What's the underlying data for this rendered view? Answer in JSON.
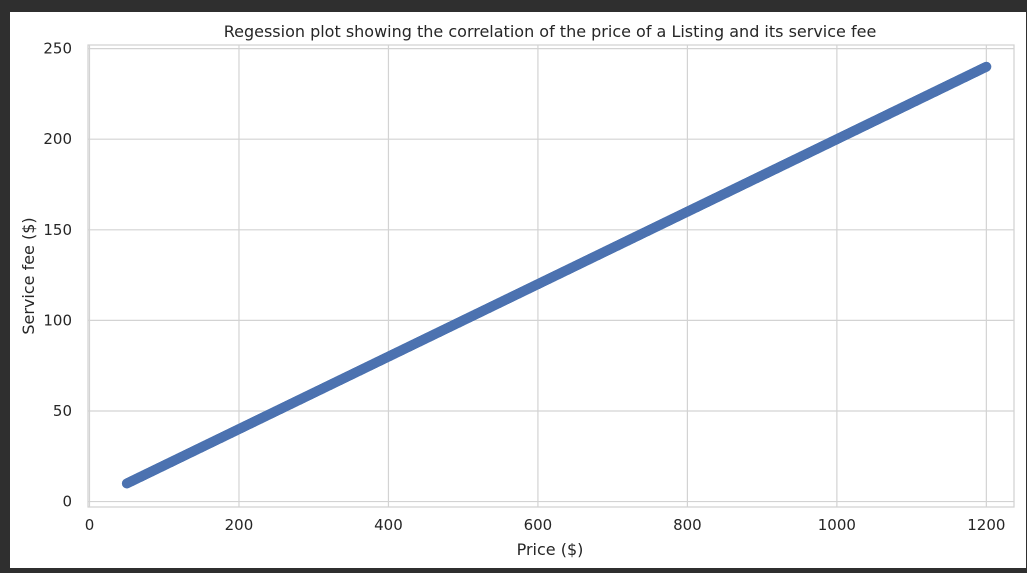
{
  "chart_data": {
    "type": "scatter",
    "title": "Regession plot showing the correlation of the price of a Listing and its service fee",
    "xlabel": "Price ($)",
    "ylabel": "Service fee ($)",
    "xlim": [
      -2,
      1237
    ],
    "ylim": [
      -3,
      252
    ],
    "xticks": [
      0,
      200,
      400,
      600,
      800,
      1000,
      1200
    ],
    "yticks": [
      0,
      50,
      100,
      150,
      200,
      250
    ],
    "grid": true,
    "point_color": "#4c72b0",
    "series": [
      {
        "x": [
          50,
          100,
          150,
          200,
          250,
          300,
          350,
          400,
          450,
          500,
          550,
          600,
          650,
          700,
          750,
          800,
          850,
          900,
          950,
          1000,
          1050,
          1100,
          1150,
          1200
        ],
        "y": [
          10,
          20,
          30,
          40,
          50,
          60,
          70,
          80,
          90,
          100,
          110,
          120,
          130,
          140,
          150,
          160,
          170,
          180,
          190,
          200,
          210,
          220,
          230,
          240
        ]
      }
    ]
  }
}
